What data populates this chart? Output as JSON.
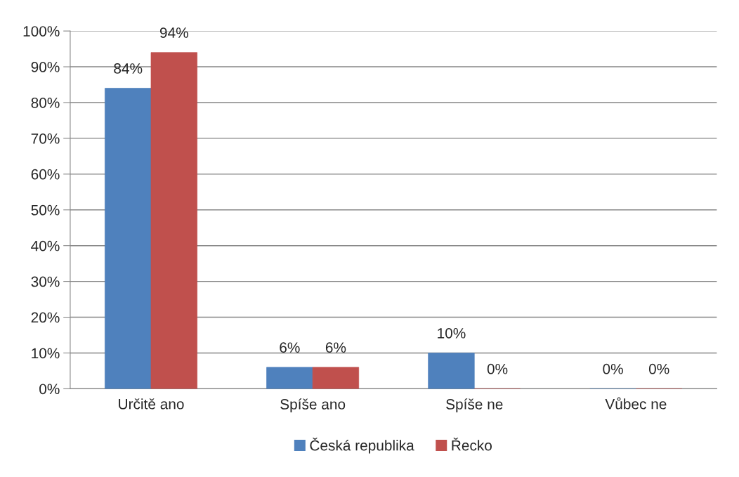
{
  "chart_data": {
    "type": "bar",
    "categories": [
      "Určitě ano",
      "Spíše ano",
      "Spíše ne",
      "Vůbec ne"
    ],
    "series": [
      {
        "name": "Česká republika",
        "color": "#4f81bd",
        "values": [
          84,
          6,
          10,
          0
        ],
        "value_labels": [
          "84%",
          "6%",
          "10%",
          "0%"
        ]
      },
      {
        "name": "Řecko",
        "color": "#c0504d",
        "values": [
          94,
          6,
          0,
          0
        ],
        "value_labels": [
          "94%",
          "6%",
          "0%",
          "0%"
        ]
      }
    ],
    "ylim": [
      0,
      100
    ],
    "yticks": [
      {
        "value": 0,
        "label": "0%"
      },
      {
        "value": 10,
        "label": "10%"
      },
      {
        "value": 20,
        "label": "20%"
      },
      {
        "value": 30,
        "label": "30%"
      },
      {
        "value": 40,
        "label": "40%"
      },
      {
        "value": 50,
        "label": "50%"
      },
      {
        "value": 60,
        "label": "60%"
      },
      {
        "value": 70,
        "label": "70%"
      },
      {
        "value": 80,
        "label": "80%"
      },
      {
        "value": 90,
        "label": "90%"
      },
      {
        "value": 100,
        "label": "100%"
      }
    ],
    "grid": "y",
    "legend": "bottom"
  }
}
